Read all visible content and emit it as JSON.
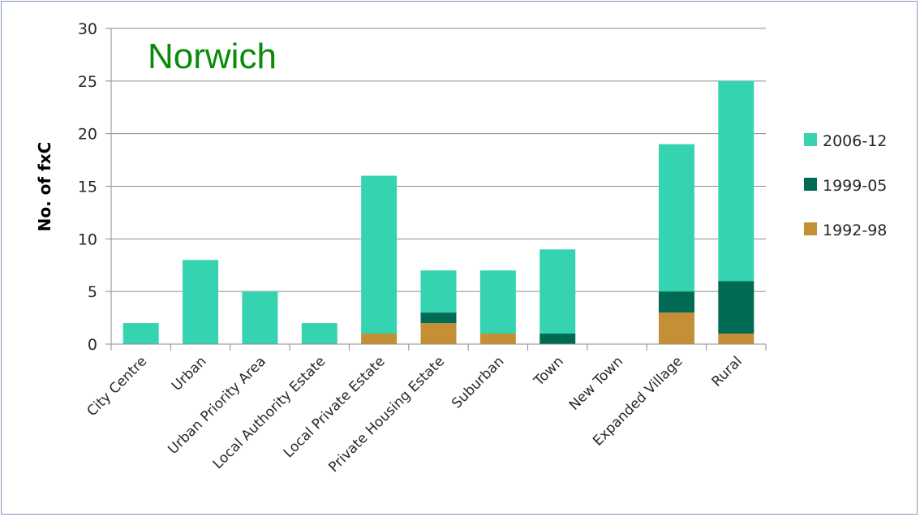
{
  "chart_data": {
    "type": "bar",
    "stacked": true,
    "title": "Norwich",
    "title_color": "#0a8a0a",
    "xlabel": "",
    "ylabel": "No. of fxC",
    "ylim": [
      0,
      30
    ],
    "yticks": [
      0,
      5,
      10,
      15,
      20,
      25,
      30
    ],
    "grid": true,
    "legend_position": "right",
    "categories": [
      "City Centre",
      "Urban",
      "Urban Priority Area",
      "Local Authority Estate",
      "Local Private Estate",
      "Private Housing Estate",
      "Suburban",
      "Town",
      "New Town",
      "Expanded Village",
      "Rural"
    ],
    "series": [
      {
        "name": "1992-98",
        "color": "#c48f35",
        "values": [
          0,
          0,
          0,
          0,
          1,
          2,
          1,
          0,
          0,
          3,
          1
        ]
      },
      {
        "name": "1999-05",
        "color": "#006a52",
        "values": [
          0,
          0,
          0,
          0,
          0,
          1,
          0,
          1,
          0,
          2,
          5
        ]
      },
      {
        "name": "2006-12",
        "color": "#36d3b1",
        "values": [
          2,
          8,
          5,
          2,
          15,
          4,
          6,
          8,
          0,
          14,
          19
        ]
      }
    ],
    "legend_order": [
      "2006-12",
      "1999-05",
      "1992-98"
    ]
  }
}
